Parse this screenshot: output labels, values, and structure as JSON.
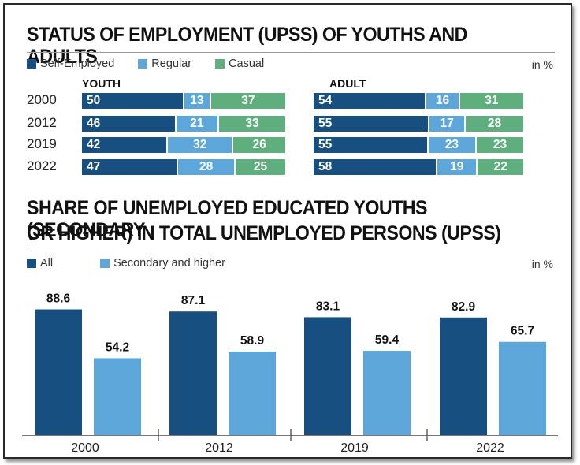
{
  "section1": {
    "title": "STATUS OF EMPLOYMENT (UPSS) OF YOUTHS AND ADULTS",
    "unit": "in %",
    "legend": [
      {
        "label": "Self-Employed",
        "color": "#174f80"
      },
      {
        "label": "Regular",
        "color": "#5da6d9"
      },
      {
        "label": "Casual",
        "color": "#5fae7d"
      }
    ],
    "youth_label": "YOUTH",
    "adult_label": "ADULT"
  },
  "section2": {
    "title_line1": "SHARE OF UNEMPLOYED EDUCATED YOUTHS (SECONDARY",
    "title_line2": "OR HIGHER) IN TOTAL UNEMPLOYED PERSONS (UPSS)",
    "unit": "in %",
    "legend": [
      {
        "label": "All",
        "color": "#174f80"
      },
      {
        "label": "Secondary and higher",
        "color": "#5da6d9"
      }
    ]
  },
  "chart_data": [
    {
      "type": "bar",
      "orientation": "horizontal-stacked",
      "title": "STATUS OF EMPLOYMENT (UPSS) OF YOUTHS AND ADULTS",
      "panel": "YOUTH",
      "categories": [
        "2000",
        "2012",
        "2019",
        "2022"
      ],
      "series": [
        {
          "name": "Self-Employed",
          "values": [
            50,
            46,
            42,
            47
          ],
          "color": "#174f80"
        },
        {
          "name": "Regular",
          "values": [
            13,
            21,
            32,
            28
          ],
          "color": "#5da6d9"
        },
        {
          "name": "Casual",
          "values": [
            37,
            33,
            26,
            25
          ],
          "color": "#5fae7d"
        }
      ]
    },
    {
      "type": "bar",
      "orientation": "horizontal-stacked",
      "title": "STATUS OF EMPLOYMENT (UPSS) OF YOUTHS AND ADULTS",
      "panel": "ADULT",
      "categories": [
        "2000",
        "2012",
        "2019",
        "2022"
      ],
      "series": [
        {
          "name": "Self-Employed",
          "values": [
            54,
            55,
            55,
            58
          ],
          "color": "#174f80"
        },
        {
          "name": "Regular",
          "values": [
            16,
            17,
            23,
            19
          ],
          "color": "#5da6d9"
        },
        {
          "name": "Casual",
          "values": [
            31,
            28,
            23,
            22
          ],
          "color": "#5fae7d"
        }
      ]
    },
    {
      "type": "bar",
      "title": "SHARE OF UNEMPLOYED EDUCATED YOUTHS (SECONDARY OR HIGHER) IN TOTAL UNEMPLOYED PERSONS (UPSS)",
      "categories": [
        "2000",
        "2012",
        "2019",
        "2022"
      ],
      "series": [
        {
          "name": "All",
          "values": [
            88.6,
            87.1,
            83.1,
            82.9
          ],
          "color": "#174f80"
        },
        {
          "name": "Secondary and higher",
          "values": [
            54.2,
            58.9,
            59.4,
            65.7
          ],
          "color": "#5da6d9"
        }
      ],
      "ylim": [
        0,
        100
      ],
      "grid": false,
      "legend": "top-left"
    }
  ]
}
